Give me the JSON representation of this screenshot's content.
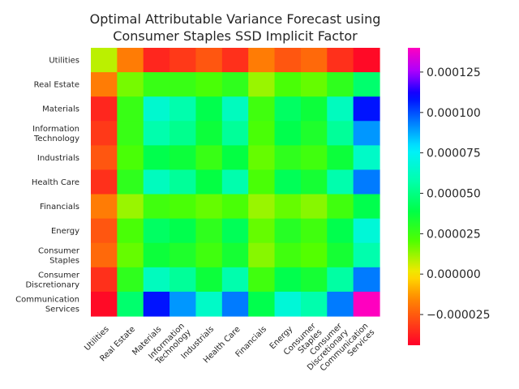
{
  "chart_data": {
    "type": "heatmap",
    "title": "Optimal Attributable Variance Forecast using\nConsumer Staples SSD Implicit Factor",
    "row_labels": [
      "Utilities",
      "Real Estate",
      "Materials",
      "Information\nTechnology",
      "Industrials",
      "Health Care",
      "Financials",
      "Energy",
      "Consumer\nStaples",
      "Consumer\nDiscretionary",
      "Communication\nServices"
    ],
    "col_labels": [
      "Utilities",
      "Real Estate",
      "Materials",
      "Information\nTechnology",
      "Industrials",
      "Health Care",
      "Financials",
      "Energy",
      "Consumer\nStaples",
      "Consumer\nDiscretionary",
      "Communication\nServices"
    ],
    "values": [
      [
        8e-06,
        -1.8e-05,
        -3.6e-05,
        -3.2e-05,
        -2.6e-05,
        -3.4e-05,
        -1.8e-05,
        -2.6e-05,
        -2.2e-05,
        -3.4e-05,
        -4.2e-05
      ],
      [
        -1.8e-05,
        1.6e-05,
        2.6e-05,
        2.6e-05,
        2.2e-05,
        2.8e-05,
        1.2e-05,
        2.2e-05,
        1.8e-05,
        2.8e-05,
        4.6e-05
      ],
      [
        -3.6e-05,
        2.6e-05,
        6.6e-05,
        5.8e-05,
        4e-05,
        6.2e-05,
        2.4e-05,
        4.4e-05,
        3.6e-05,
        6.2e-05,
        0.000108
      ],
      [
        -3.2e-05,
        2.6e-05,
        5.8e-05,
        5.2e-05,
        3.6e-05,
        5.4e-05,
        2.2e-05,
        4e-05,
        3.2e-05,
        5.4e-05,
        9e-05
      ],
      [
        -2.6e-05,
        2.2e-05,
        4e-05,
        3.6e-05,
        2.6e-05,
        3.8e-05,
        1.8e-05,
        2.8e-05,
        2.4e-05,
        3.6e-05,
        6.4e-05
      ],
      [
        -3.4e-05,
        2.8e-05,
        6.2e-05,
        5.4e-05,
        3.8e-05,
        5.8e-05,
        2.2e-05,
        4.2e-05,
        3.4e-05,
        5.8e-05,
        9.4e-05
      ],
      [
        -1.8e-05,
        1.2e-05,
        2.4e-05,
        2.2e-05,
        1.8e-05,
        2.2e-05,
        1.2e-05,
        1.8e-05,
        1.4e-05,
        2.4e-05,
        4e-05
      ],
      [
        -2.6e-05,
        2.2e-05,
        4.4e-05,
        4e-05,
        2.8e-05,
        4.2e-05,
        1.8e-05,
        3e-05,
        2.4e-05,
        4e-05,
        6.8e-05
      ],
      [
        -2.2e-05,
        1.8e-05,
        3.6e-05,
        3.2e-05,
        2.4e-05,
        3.4e-05,
        1.4e-05,
        2.4e-05,
        2e-05,
        3.4e-05,
        5.8e-05
      ],
      [
        -3.4e-05,
        2.8e-05,
        6.2e-05,
        5.4e-05,
        3.6e-05,
        5.8e-05,
        2.4e-05,
        4e-05,
        3.4e-05,
        5.6e-05,
        9.4e-05
      ],
      [
        -4.2e-05,
        4.6e-05,
        0.000108,
        9e-05,
        6.4e-05,
        9.4e-05,
        4e-05,
        6.8e-05,
        5.8e-05,
        9.4e-05,
        0.000158
      ]
    ],
    "colormap": "gist_rainbow",
    "vmin": -4.4e-05,
    "vmax": 0.00014,
    "colorbar_ticks": [
      -2.5e-05,
      0.0,
      2.5e-05,
      5e-05,
      7.5e-05,
      0.0001,
      0.000125
    ],
    "colorbar_tick_labels": [
      "−0.000025",
      "0.000000",
      "0.000025",
      "0.000050",
      "0.000075",
      "0.000100",
      "0.000125"
    ],
    "grid": false
  }
}
